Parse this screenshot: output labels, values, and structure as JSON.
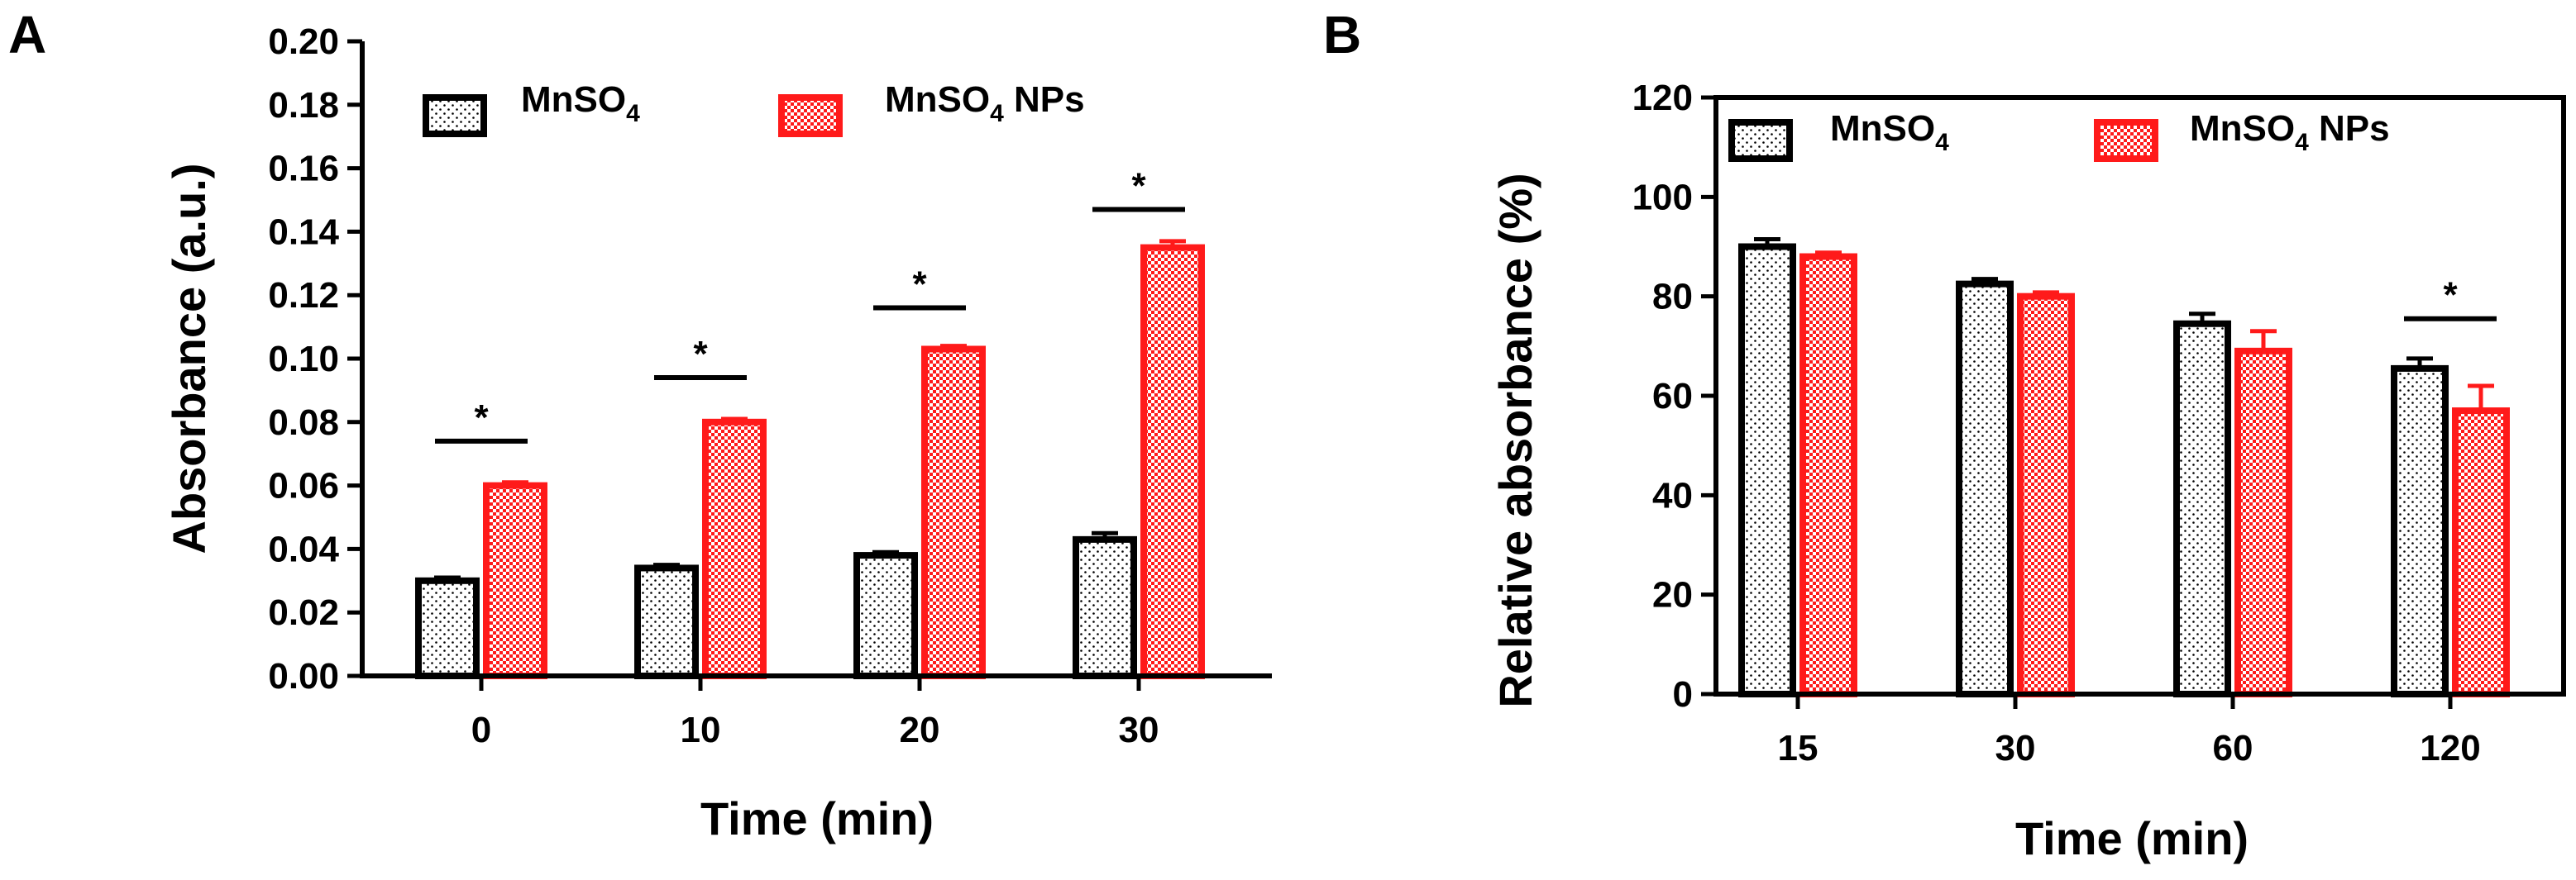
{
  "colors": {
    "series1": "#000000",
    "series2": "#ff1a1a",
    "background": "#ffffff"
  },
  "chart_data": [
    {
      "panel": "A",
      "type": "bar",
      "xlabel": "Time (min)",
      "ylabel": "Absorbance (a.u.)",
      "ylim": [
        0,
        0.2
      ],
      "yticks": [
        "0.00",
        "0.02",
        "0.04",
        "0.06",
        "0.08",
        "0.10",
        "0.12",
        "0.14",
        "0.16",
        "0.18",
        "0.20"
      ],
      "categories": [
        "0",
        "10",
        "20",
        "30"
      ],
      "legend_position": "top",
      "series": [
        {
          "name": "MnSO4",
          "name_base": "MnSO",
          "name_sub": "4",
          "name_suffix": "",
          "values": [
            0.03,
            0.034,
            0.038,
            0.043
          ],
          "errors": [
            0.001,
            0.001,
            0.001,
            0.002
          ]
        },
        {
          "name": "MnSO4 NPs",
          "name_base": "MnSO",
          "name_sub": "4",
          "name_suffix": " NPs",
          "values": [
            0.06,
            0.08,
            0.103,
            0.135
          ],
          "errors": [
            0.001,
            0.001,
            0.001,
            0.002
          ]
        }
      ],
      "significance": [
        {
          "category": "0",
          "label": "*",
          "y": 0.074
        },
        {
          "category": "10",
          "label": "*",
          "y": 0.094
        },
        {
          "category": "20",
          "label": "*",
          "y": 0.116
        },
        {
          "category": "30",
          "label": "*",
          "y": 0.147
        }
      ]
    },
    {
      "panel": "B",
      "type": "bar",
      "xlabel": "Time (min)",
      "ylabel": "Relative absorbance (%)",
      "ylim": [
        0,
        120
      ],
      "yticks": [
        "0",
        "20",
        "40",
        "60",
        "80",
        "100",
        "120"
      ],
      "categories": [
        "15",
        "30",
        "60",
        "120"
      ],
      "legend_position": "top",
      "series": [
        {
          "name": "MnSO4",
          "name_base": "MnSO",
          "name_sub": "4",
          "name_suffix": "",
          "values": [
            90,
            82.5,
            74.5,
            65.5
          ],
          "errors": [
            1.5,
            1.0,
            2.0,
            2.0
          ]
        },
        {
          "name": "MnSO4 NPs",
          "name_base": "MnSO",
          "name_sub": "4",
          "name_suffix": " NPs",
          "values": [
            88,
            80,
            69,
            57
          ],
          "errors": [
            0.8,
            0.8,
            4.0,
            5.0
          ]
        }
      ],
      "significance": [
        {
          "category": "120",
          "label": "*",
          "y": 75.5
        }
      ]
    }
  ]
}
